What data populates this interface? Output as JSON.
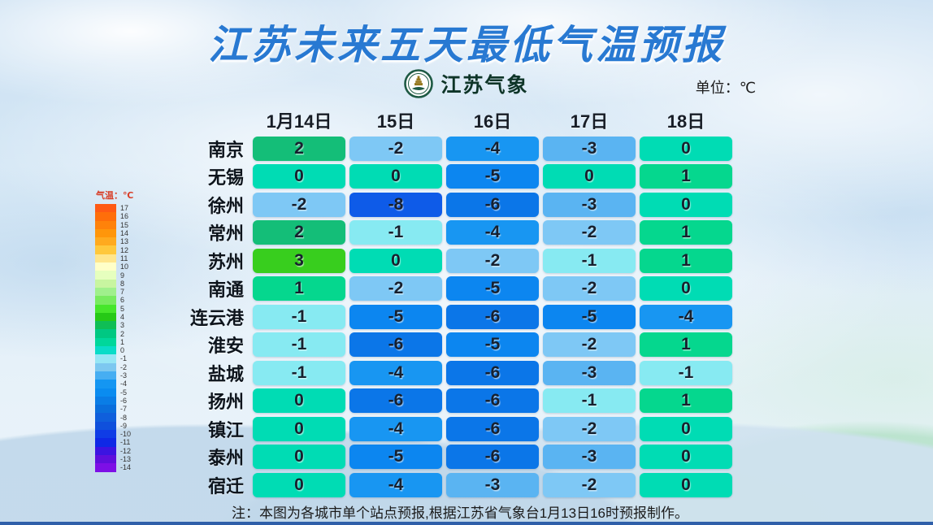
{
  "title": "江苏未来五天最低气温预报",
  "logo": {
    "text": "江苏气象"
  },
  "unit_label": "单位：℃",
  "colors": {
    "title_blue": "#2879d2",
    "logo_green": "#1e5a44",
    "legend_label_red": "#d8402a",
    "bottom_bar_blue": "#2f5fa9"
  },
  "legend": {
    "label": "气温：℃",
    "entries": [
      {
        "label": "17",
        "color": "#ff5a14"
      },
      {
        "label": "16",
        "color": "#ff6e0a"
      },
      {
        "label": "15",
        "color": "#ff820a"
      },
      {
        "label": "14",
        "color": "#ff960a"
      },
      {
        "label": "13",
        "color": "#ffaa1e"
      },
      {
        "label": "12",
        "color": "#ffc83c"
      },
      {
        "label": "11",
        "color": "#ffe68c"
      },
      {
        "label": "10",
        "color": "#ffffc8"
      },
      {
        "label": "9",
        "color": "#e6ffbe"
      },
      {
        "label": "8",
        "color": "#c8f5a0"
      },
      {
        "label": "7",
        "color": "#a0f08c"
      },
      {
        "label": "6",
        "color": "#78eb5f"
      },
      {
        "label": "5",
        "color": "#46e62b"
      },
      {
        "label": "4",
        "color": "#26c916"
      },
      {
        "label": "3",
        "color": "#0fbe55"
      },
      {
        "label": "2",
        "color": "#00c882"
      },
      {
        "label": "1",
        "color": "#00d79b"
      },
      {
        "label": "0",
        "color": "#0adcc8"
      },
      {
        "label": "-1",
        "color": "#96e6f5"
      },
      {
        "label": "-2",
        "color": "#7dc8f0"
      },
      {
        "label": "-3",
        "color": "#46aef2"
      },
      {
        "label": "-4",
        "color": "#1496f2"
      },
      {
        "label": "-5",
        "color": "#0a8cf0"
      },
      {
        "label": "-6",
        "color": "#0a7de6"
      },
      {
        "label": "-7",
        "color": "#0a6edc"
      },
      {
        "label": "-8",
        "color": "#0f5fdc"
      },
      {
        "label": "-9",
        "color": "#0f50dc"
      },
      {
        "label": "-10",
        "color": "#0f3ce6"
      },
      {
        "label": "-11",
        "color": "#0f28e6"
      },
      {
        "label": "-12",
        "color": "#3c14e1"
      },
      {
        "label": "-13",
        "color": "#5f0fdc"
      },
      {
        "label": "-14",
        "color": "#7d0fe6"
      }
    ]
  },
  "cell_colors": {
    "3": "#38ce1e",
    "2": "#14be78",
    "1": "#05d78e",
    "0": "#00dcb4",
    "-1": "#87eaf2",
    "-2": "#7ec8f5",
    "-3": "#5ab4f2",
    "-4": "#1896f2",
    "-5": "#0c86f0",
    "-6": "#0b76e8",
    "-8": "#0e5be8"
  },
  "table": {
    "date_headers": [
      "1月14日",
      "15日",
      "16日",
      "17日",
      "18日"
    ],
    "rows": [
      {
        "city": "南京",
        "values": [
          2,
          -2,
          -4,
          -3,
          0
        ]
      },
      {
        "city": "无锡",
        "values": [
          0,
          0,
          -5,
          0,
          1
        ]
      },
      {
        "city": "徐州",
        "values": [
          -2,
          -8,
          -6,
          -3,
          0
        ]
      },
      {
        "city": "常州",
        "values": [
          2,
          -1,
          -4,
          -2,
          1
        ]
      },
      {
        "city": "苏州",
        "values": [
          3,
          0,
          -2,
          -1,
          1
        ]
      },
      {
        "city": "南通",
        "values": [
          1,
          -2,
          -5,
          -2,
          0
        ]
      },
      {
        "city": "连云港",
        "values": [
          -1,
          -5,
          -6,
          -5,
          -4
        ]
      },
      {
        "city": "淮安",
        "values": [
          -1,
          -6,
          -5,
          -2,
          1
        ]
      },
      {
        "city": "盐城",
        "values": [
          -1,
          -4,
          -6,
          -3,
          -1
        ]
      },
      {
        "city": "扬州",
        "values": [
          0,
          -6,
          -6,
          -1,
          1
        ]
      },
      {
        "city": "镇江",
        "values": [
          0,
          -4,
          -6,
          -2,
          0
        ]
      },
      {
        "city": "泰州",
        "values": [
          0,
          -5,
          -6,
          -3,
          0
        ]
      },
      {
        "city": "宿迁",
        "values": [
          0,
          -4,
          -3,
          -2,
          0
        ]
      }
    ]
  },
  "note": "注：本图为各城市单个站点预报,根据江苏省气象台1月13日16时预报制作。",
  "chart_data": {
    "type": "heatmap",
    "title": "江苏未来五天最低气温预报",
    "unit": "℃",
    "columns": [
      "1月14日",
      "15日",
      "16日",
      "17日",
      "18日"
    ],
    "rows": [
      "南京",
      "无锡",
      "徐州",
      "常州",
      "苏州",
      "南通",
      "连云港",
      "淮安",
      "盐城",
      "扬州",
      "镇江",
      "泰州",
      "宿迁"
    ],
    "values": [
      [
        2,
        -2,
        -4,
        -3,
        0
      ],
      [
        0,
        0,
        -5,
        0,
        1
      ],
      [
        -2,
        -8,
        -6,
        -3,
        0
      ],
      [
        2,
        -1,
        -4,
        -2,
        1
      ],
      [
        3,
        0,
        -2,
        -1,
        1
      ],
      [
        1,
        -2,
        -5,
        -2,
        0
      ],
      [
        -1,
        -5,
        -6,
        -5,
        -4
      ],
      [
        -1,
        -6,
        -5,
        -2,
        1
      ],
      [
        -1,
        -4,
        -6,
        -3,
        -1
      ],
      [
        0,
        -6,
        -6,
        -1,
        1
      ],
      [
        0,
        -4,
        -6,
        -2,
        0
      ],
      [
        0,
        -5,
        -6,
        -3,
        0
      ],
      [
        0,
        -4,
        -3,
        -2,
        0
      ]
    ],
    "colorbar": {
      "label": "气温：℃",
      "tick_max": 17,
      "tick_min": -14,
      "position": "left"
    },
    "source_note": "注：本图为各城市单个站点预报,根据江苏省气象台1月13日16时预报制作。"
  }
}
